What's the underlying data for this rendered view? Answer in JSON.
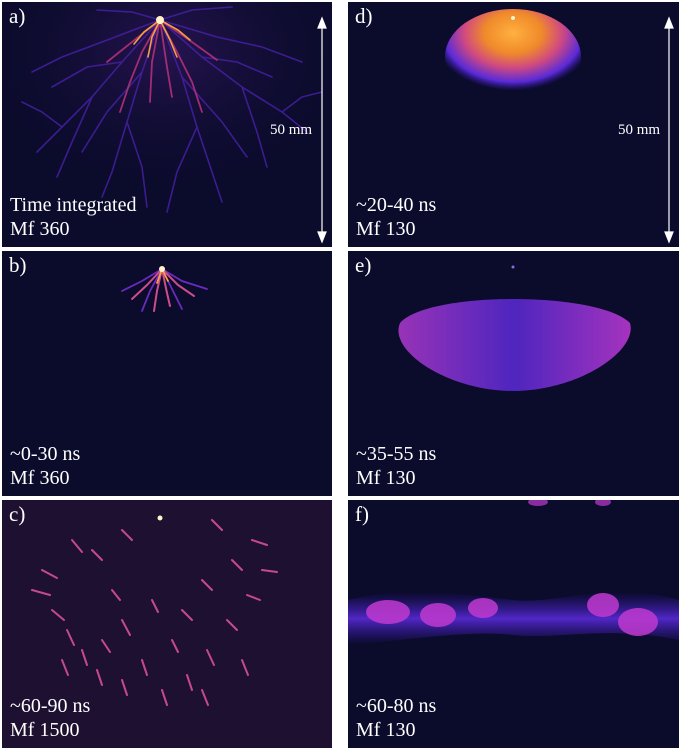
{
  "figure": {
    "panels": [
      {
        "id": "a",
        "label": "a)",
        "time": "Time integrated",
        "mf": "Mf 360",
        "scale": "50 mm"
      },
      {
        "id": "b",
        "label": "b)",
        "time": "~0-30 ns",
        "mf": "Mf 360"
      },
      {
        "id": "c",
        "label": "c)",
        "time": "~60-90 ns",
        "mf": "Mf 1500"
      },
      {
        "id": "d",
        "label": "d)",
        "time": "~20-40 ns",
        "mf": "Mf 130",
        "scale": "50 mm"
      },
      {
        "id": "e",
        "label": "e)",
        "time": "~35-55 ns",
        "mf": "Mf 130"
      },
      {
        "id": "f",
        "label": "f)",
        "time": "~60-80 ns",
        "mf": "Mf 130"
      }
    ],
    "colors": {
      "background": "#0b0b2c",
      "background_c": "#1e1030",
      "streamer_core": "#ffd27a",
      "streamer_mid": "#e0508a",
      "streamer_edge": "#6a22c0",
      "diffuse_core": "#f08a2a",
      "diffuse_edge": "#4a2ad0"
    }
  }
}
